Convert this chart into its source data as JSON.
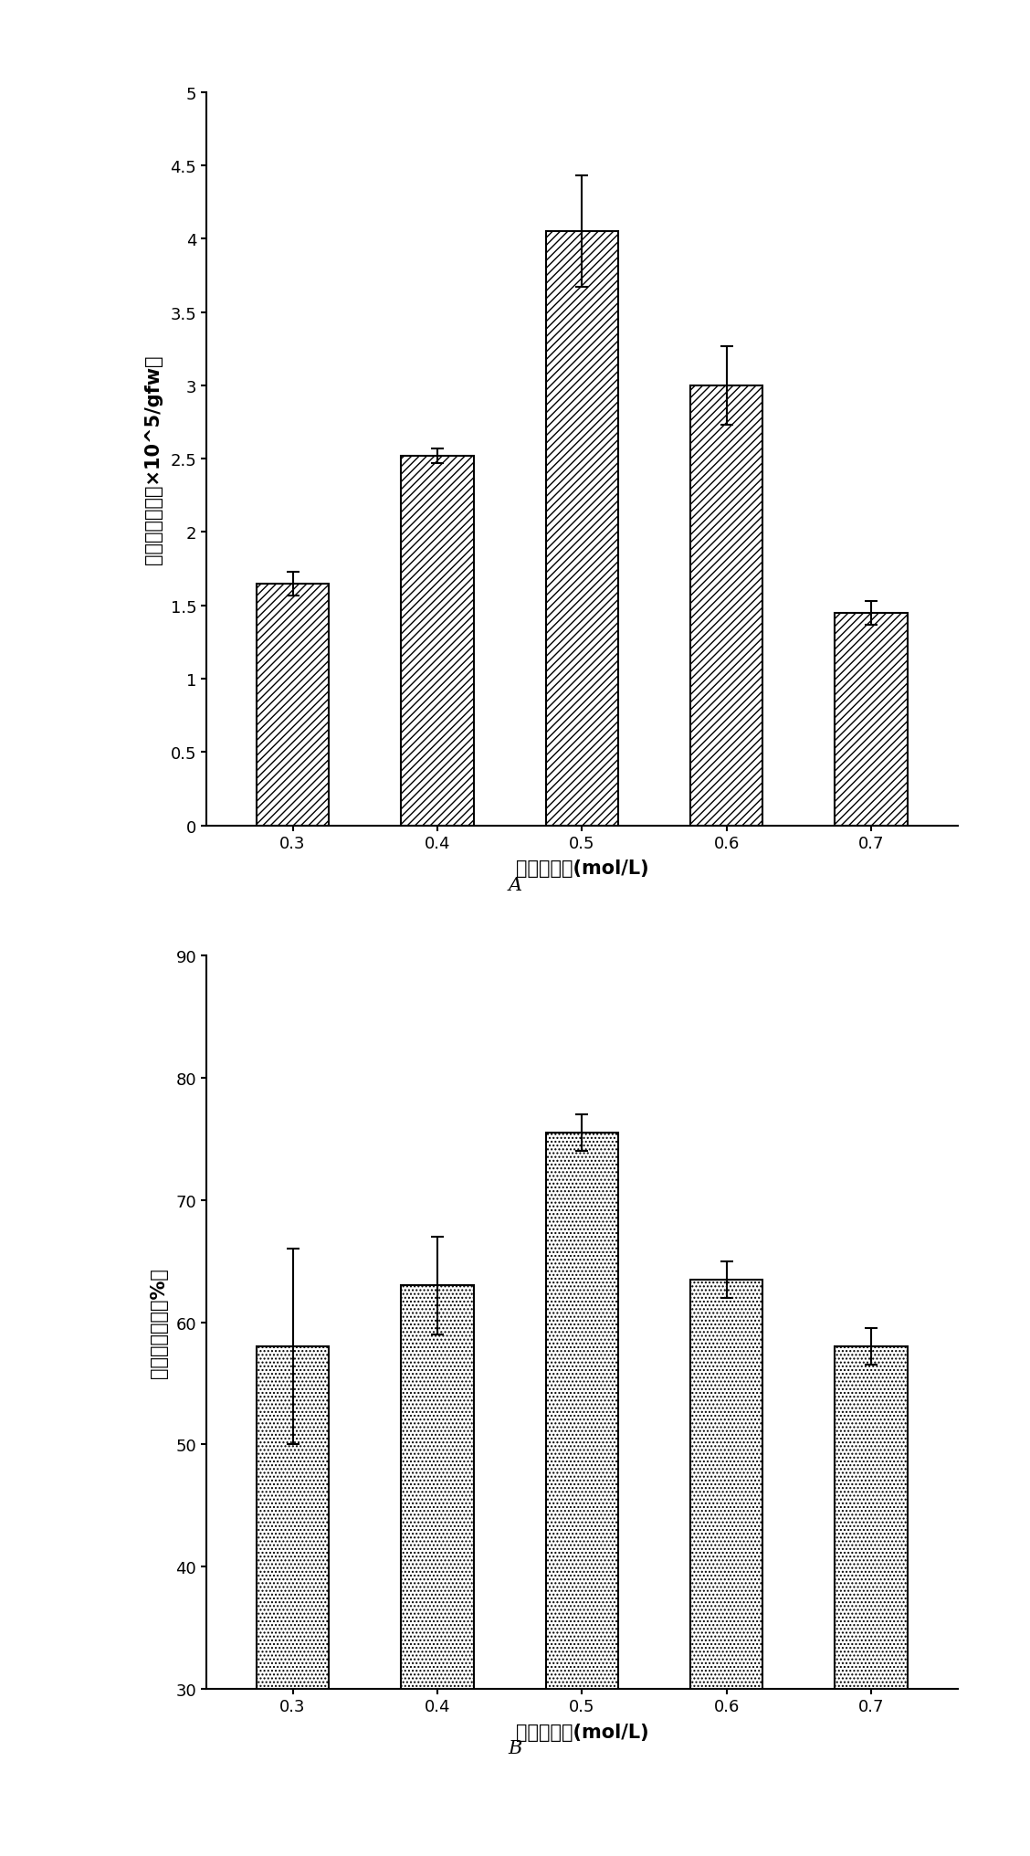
{
  "chart_A": {
    "categories": [
      "0.3",
      "0.4",
      "0.5",
      "0.6",
      "0.7"
    ],
    "values": [
      1.65,
      2.52,
      4.05,
      3.0,
      1.45
    ],
    "errors": [
      0.08,
      0.05,
      0.38,
      0.27,
      0.08
    ],
    "ylabel": "原生质体产量（×10^5/gfw）",
    "xlabel": "甘露醇浓度(mol/L)",
    "ylim": [
      0,
      5
    ],
    "yticks": [
      0,
      0.5,
      1.0,
      1.5,
      2.0,
      2.5,
      3.0,
      3.5,
      4.0,
      4.5,
      5.0
    ],
    "ytick_labels": [
      "0",
      "0.5",
      "1",
      "1.5",
      "2",
      "2.5",
      "3",
      "3.5",
      "4",
      "4.5",
      "5"
    ],
    "label": "A"
  },
  "chart_B": {
    "categories": [
      "0.3",
      "0.4",
      "0.5",
      "0.6",
      "0.7"
    ],
    "values": [
      58,
      63,
      75.5,
      63.5,
      58
    ],
    "errors": [
      8.0,
      4.0,
      1.5,
      1.5,
      1.5
    ],
    "ylabel": "原生质体活力（%）",
    "xlabel": "甘露醇浓度(mol/L)",
    "ylim": [
      30,
      90
    ],
    "yticks": [
      30,
      40,
      50,
      60,
      70,
      80,
      90
    ],
    "ytick_labels": [
      "30",
      "40",
      "50",
      "60",
      "70",
      "80",
      "90"
    ],
    "label": "B"
  },
  "bar_width": 0.5,
  "figure_bg": "#ffffff",
  "hatch_A": "////",
  "hatch_B": "....",
  "font_size_label": 15,
  "font_size_tick": 13,
  "font_size_annot": 15
}
